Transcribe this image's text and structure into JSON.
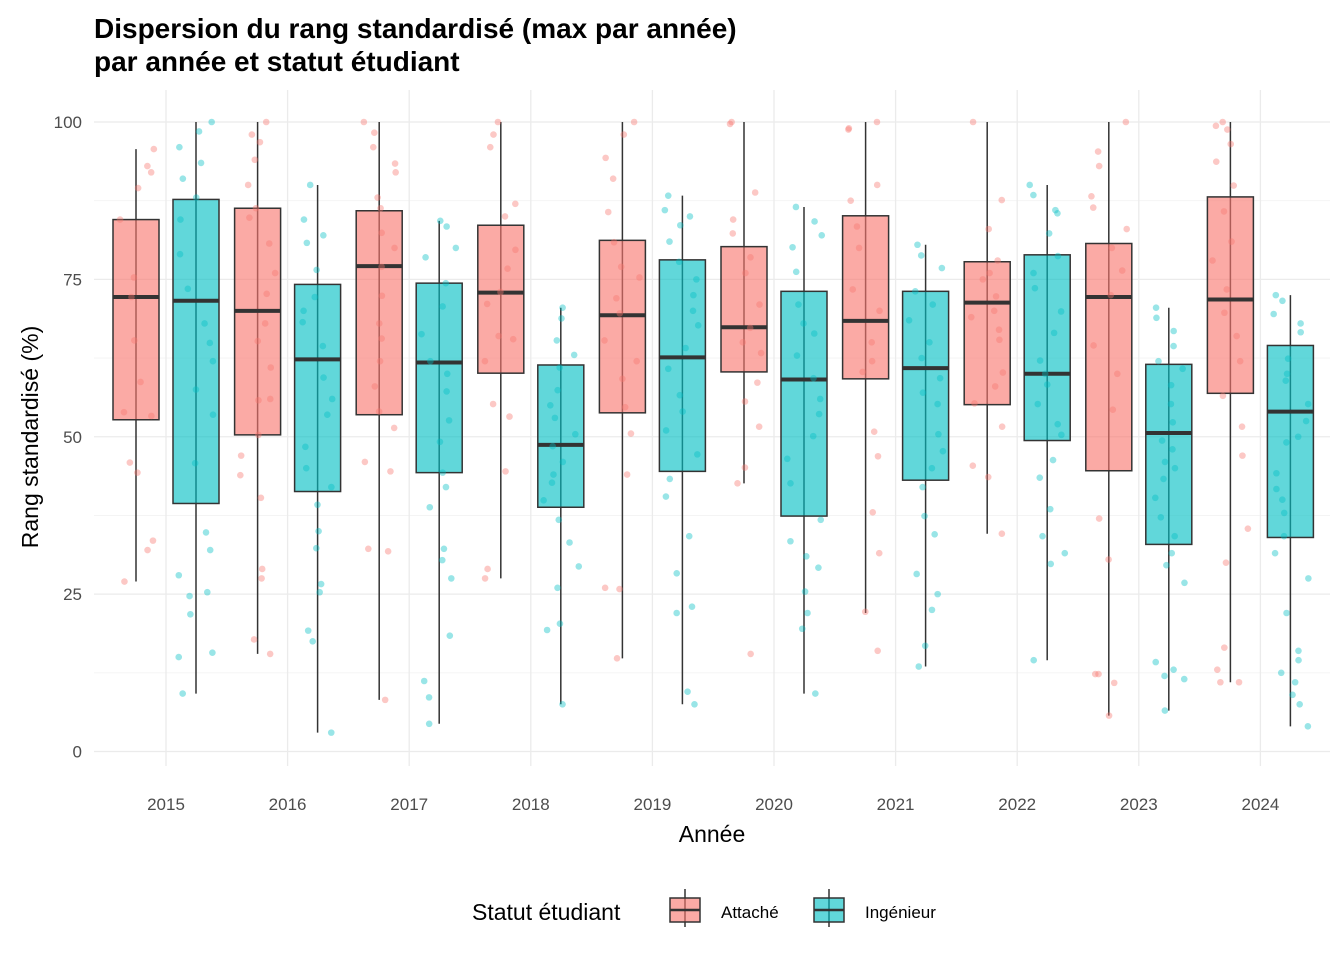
{
  "chart_data": {
    "type": "boxplot",
    "title": [
      "Dispersion du rang standardisé (max par année)",
      "par année et statut étudiant"
    ],
    "xlabel": "Année",
    "ylabel": "Rang standardisé (%)",
    "ylim": [
      -2,
      103
    ],
    "yticks": [
      0,
      25,
      50,
      75,
      100
    ],
    "categories": [
      "2015",
      "2016",
      "2017",
      "2018",
      "2019",
      "2020",
      "2021",
      "2022",
      "2023",
      "2024"
    ],
    "grid": true,
    "legend": {
      "title": "Statut étudiant",
      "position": "bottom"
    },
    "series": [
      {
        "name": "Attaché",
        "color": "#F8766D",
        "boxes": [
          {
            "min": 27,
            "q1": 52.7,
            "median": 72.2,
            "q3": 84.5,
            "max": 95.7
          },
          {
            "min": 15.5,
            "q1": 50.3,
            "median": 70,
            "q3": 86.3,
            "max": 100
          },
          {
            "min": 8.2,
            "q1": 53.5,
            "median": 77.1,
            "q3": 85.9,
            "max": 100
          },
          {
            "min": 27.5,
            "q1": 60.1,
            "median": 72.9,
            "q3": 83.6,
            "max": 100
          },
          {
            "min": 14.8,
            "q1": 53.8,
            "median": 69.3,
            "q3": 81.2,
            "max": 100
          },
          {
            "min": 42.6,
            "q1": 60.3,
            "median": 67.4,
            "q3": 80.2,
            "max": 100
          },
          {
            "min": 22,
            "q1": 59.2,
            "median": 68.4,
            "q3": 85.1,
            "max": 100
          },
          {
            "min": 34.6,
            "q1": 55.1,
            "median": 71.3,
            "q3": 77.8,
            "max": 100
          },
          {
            "min": 5.7,
            "q1": 44.6,
            "median": 72.2,
            "q3": 80.7,
            "max": 100
          },
          {
            "min": 11,
            "q1": 56.9,
            "median": 71.8,
            "q3": 88.1,
            "max": 100
          }
        ],
        "points": [
          [
            92,
            84.5,
            89.5,
            72.2,
            65.3,
            58.7,
            53.9,
            45.9,
            44.3,
            33.5,
            32,
            27,
            95.7,
            93,
            75.3,
            53.3
          ],
          [
            100,
            96.8,
            86.3,
            84.8,
            80.7,
            72.7,
            65.2,
            55.8,
            50.3,
            43.9,
            40.3,
            27.5,
            17.8,
            15.5,
            98,
            94,
            90,
            76,
            68,
            61,
            56,
            47,
            29
          ],
          [
            100,
            98.3,
            96,
            93.4,
            86.3,
            82.4,
            77,
            72.4,
            65.6,
            58,
            51.4,
            44.5,
            32.2,
            31.8,
            8.2,
            92,
            88,
            80,
            68,
            62,
            54,
            46
          ],
          [
            100,
            98,
            87,
            85,
            79.7,
            76.7,
            71.1,
            65.5,
            62,
            55.2,
            53.2,
            44.5,
            29,
            27.5,
            96,
            73,
            66
          ],
          [
            100,
            98,
            94.3,
            85.7,
            80.9,
            75.3,
            69.6,
            65.3,
            59.2,
            54.7,
            50.5,
            44,
            26,
            25.8,
            14.8,
            91,
            77,
            72,
            62
          ],
          [
            100,
            99.7,
            88.8,
            84.5,
            82.3,
            78.5,
            71,
            67.3,
            63.3,
            58.6,
            55.6,
            51.6,
            45.1,
            42.6,
            15.5,
            76,
            65
          ],
          [
            100,
            99,
            98.8,
            90,
            87.5,
            83.4,
            73.4,
            65,
            60.3,
            50.8,
            46.9,
            38,
            31.5,
            22.2,
            16,
            80,
            70,
            62
          ],
          [
            100,
            87.6,
            83,
            78,
            75,
            72.3,
            69,
            65.4,
            60.2,
            55.3,
            51.6,
            45.4,
            43.6,
            34.6,
            76,
            70,
            67,
            58
          ],
          [
            100,
            95.3,
            93,
            88.2,
            86.4,
            80,
            76.4,
            72.5,
            64.5,
            54.3,
            37,
            30.5,
            12.3,
            12.3,
            10.9,
            5.7,
            83,
            60
          ],
          [
            100,
            98.8,
            96.5,
            93.7,
            89.9,
            85.8,
            81,
            73.4,
            69.7,
            62,
            56.5,
            51.6,
            47,
            35.4,
            30,
            16.5,
            13,
            11,
            11,
            99.4,
            78,
            66
          ]
        ]
      },
      {
        "name": "Ingénieur",
        "color": "#00BFC4",
        "boxes": [
          {
            "min": 9.2,
            "q1": 39.4,
            "median": 71.6,
            "q3": 87.7,
            "max": 100
          },
          {
            "min": 3,
            "q1": 41.3,
            "median": 62.3,
            "q3": 74.2,
            "max": 90
          },
          {
            "min": 4.4,
            "q1": 44.3,
            "median": 61.8,
            "q3": 74.4,
            "max": 84.3
          },
          {
            "min": 7.5,
            "q1": 38.8,
            "median": 48.7,
            "q3": 61.4,
            "max": 70.5
          },
          {
            "min": 7.5,
            "q1": 44.5,
            "median": 62.6,
            "q3": 78.1,
            "max": 88.3
          },
          {
            "min": 9.2,
            "q1": 37.4,
            "median": 59.1,
            "q3": 73.1,
            "max": 86.5
          },
          {
            "min": 13.5,
            "q1": 43.1,
            "median": 60.9,
            "q3": 73.1,
            "max": 80.5
          },
          {
            "min": 14.5,
            "q1": 49.4,
            "median": 60,
            "q3": 78.9,
            "max": 90
          },
          {
            "min": 6.5,
            "q1": 32.9,
            "median": 50.6,
            "q3": 61.5,
            "max": 70.5
          },
          {
            "min": 4,
            "q1": 34,
            "median": 54,
            "q3": 64.5,
            "max": 72.5
          }
        ],
        "points": [
          [
            100,
            98.5,
            93.5,
            91,
            84.5,
            79,
            73.5,
            68,
            64.9,
            57.5,
            53.5,
            45.8,
            34.8,
            32,
            28,
            25.3,
            24.7,
            21.8,
            15.7,
            15,
            9.2,
            96,
            88,
            62
          ],
          [
            90,
            84.5,
            80.8,
            76.5,
            72.2,
            68.2,
            64.4,
            59.4,
            53.5,
            48.4,
            45,
            42,
            39.2,
            32.3,
            26.6,
            25.3,
            19.2,
            17.5,
            3,
            82,
            70,
            56,
            35
          ],
          [
            84.3,
            83.4,
            78.5,
            74.4,
            70.7,
            66.3,
            62,
            57.2,
            52.6,
            49.2,
            44.3,
            38.8,
            32.2,
            30.4,
            27.5,
            18.4,
            11.2,
            8.6,
            4.4,
            80,
            60,
            42
          ],
          [
            70.5,
            68.8,
            65.3,
            61,
            57.4,
            55,
            50.4,
            48.5,
            46,
            42.7,
            39.9,
            36.8,
            33.2,
            29.4,
            20.3,
            19.3,
            7.5,
            63,
            53,
            44,
            26
          ],
          [
            88.3,
            86,
            83.6,
            81,
            77.8,
            72.5,
            67.7,
            64.1,
            60.8,
            56.6,
            51,
            47.2,
            43.3,
            40.5,
            34.2,
            28.3,
            23,
            22,
            9.5,
            7.5,
            85,
            75,
            70,
            54
          ],
          [
            86.5,
            84.2,
            80.1,
            76.2,
            71,
            66.4,
            62.9,
            59.3,
            53.6,
            50.1,
            46.5,
            42.6,
            36.8,
            33.4,
            29.2,
            25.4,
            22,
            19.5,
            9.2,
            82,
            68,
            56,
            31
          ],
          [
            80.5,
            78.8,
            76.8,
            73.1,
            68.5,
            65,
            62.5,
            59.3,
            55.2,
            50.4,
            47.7,
            45,
            37.4,
            34.5,
            28.2,
            25,
            22.5,
            16.8,
            13.5,
            71,
            57,
            42
          ],
          [
            90,
            88.4,
            85.5,
            82.3,
            78.7,
            73.6,
            69.9,
            66.5,
            62.1,
            58.3,
            55.2,
            50.3,
            46.3,
            43.5,
            38.5,
            34.2,
            31.5,
            29.8,
            14.5,
            86,
            76,
            60,
            52
          ],
          [
            70.5,
            68.9,
            66.8,
            64.4,
            60.8,
            58.2,
            55.2,
            52.3,
            49.4,
            46,
            43.3,
            40.3,
            37.2,
            34.2,
            31.5,
            29.6,
            26.8,
            14.2,
            13,
            12,
            11.5,
            6.5,
            62,
            48,
            45
          ],
          [
            72.5,
            71.6,
            69.5,
            66.6,
            62.4,
            58.9,
            55.2,
            52.5,
            49.1,
            44.2,
            41.7,
            37.9,
            34.2,
            31.5,
            27.5,
            22,
            16,
            14.5,
            12.5,
            11,
            9,
            7.5,
            4,
            68,
            60,
            50,
            40
          ]
        ]
      }
    ]
  }
}
